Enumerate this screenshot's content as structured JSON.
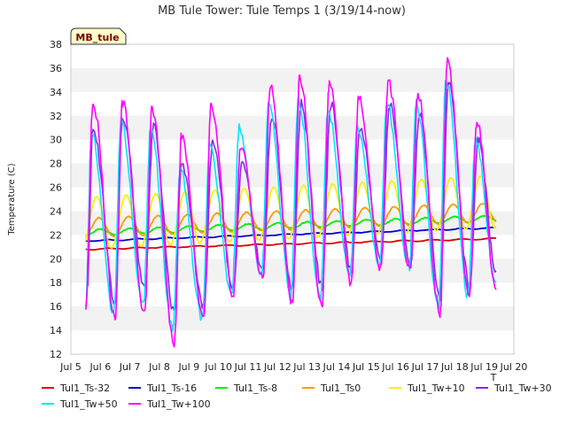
{
  "chart_data": {
    "type": "line",
    "title": "MB Tule Tower: Tule Temps 1 (3/19/14-now)",
    "site_label": "MB_tule",
    "ylabel": "Temperature (C)",
    "xlabel": "",
    "x_axis_note": "T",
    "xlim": [
      5,
      20
    ],
    "ylim": [
      12,
      38
    ],
    "x_ticks": [
      {
        "v": 5,
        "label": "Jul 5"
      },
      {
        "v": 6,
        "label": "Jul 6"
      },
      {
        "v": 7,
        "label": "Jul 7"
      },
      {
        "v": 8,
        "label": "Jul 8"
      },
      {
        "v": 9,
        "label": "Jul 9"
      },
      {
        "v": 10,
        "label": "Jul 10"
      },
      {
        "v": 11,
        "label": "Jul 11"
      },
      {
        "v": 12,
        "label": "Jul 12"
      },
      {
        "v": 13,
        "label": "Jul 13"
      },
      {
        "v": 14,
        "label": "Jul 14"
      },
      {
        "v": 15,
        "label": "Jul 15"
      },
      {
        "v": 16,
        "label": "Jul 16"
      },
      {
        "v": 17,
        "label": "Jul 17"
      },
      {
        "v": 18,
        "label": "Jul 18"
      },
      {
        "v": 19,
        "label": "Jul 19"
      },
      {
        "v": 20,
        "label": "Jul 20"
      }
    ],
    "y_ticks": [
      12,
      14,
      16,
      18,
      20,
      22,
      24,
      26,
      28,
      30,
      32,
      34,
      36,
      38
    ],
    "grid": "alternating horizontal bands",
    "legend_position": "bottom",
    "series": [
      {
        "name": "Tul1_Ts-32",
        "color": "#dd0000",
        "kind": "trend",
        "x": [
          5.5,
          19.4
        ],
        "y": [
          20.8,
          21.7
        ]
      },
      {
        "name": "Tul1_Ts-16",
        "color": "#0000cc",
        "kind": "trend",
        "x": [
          5.5,
          19.4
        ],
        "y": [
          21.5,
          22.6
        ]
      },
      {
        "name": "Tul1_Ts-8",
        "color": "#00ee00",
        "kind": "wave",
        "x_start": 5.5,
        "x_end": 19.4,
        "base_start": 22.2,
        "base_end": 23.4,
        "amplitude": 0.25,
        "phase": 0.75
      },
      {
        "name": "Tul1_Ts0",
        "color": "#ff9900",
        "kind": "wave",
        "x_start": 5.5,
        "x_end": 19.4,
        "base_start": 22.6,
        "base_end": 23.9,
        "amplitude": 0.8,
        "phase": 0.7
      },
      {
        "name": "Tul1_Tw+10",
        "color": "#ffee00",
        "kind": "wave",
        "x_start": 5.5,
        "x_end": 19.4,
        "base_start": 23.0,
        "base_end": 24.8,
        "amplitude": 2.2,
        "phase": 0.62
      },
      {
        "name": "Tul1_Tw+30",
        "color": "#8a2be2",
        "kind": "daily",
        "x": [
          5.5,
          19.4
        ],
        "peaks": [
          {
            "x": 5.75,
            "y": 31
          },
          {
            "x": 6.75,
            "y": 32
          },
          {
            "x": 7.8,
            "y": 31
          },
          {
            "x": 8.75,
            "y": 28
          },
          {
            "x": 9.8,
            "y": 30
          },
          {
            "x": 10.8,
            "y": 28
          },
          {
            "x": 11.8,
            "y": 32
          },
          {
            "x": 12.8,
            "y": 33
          },
          {
            "x": 13.8,
            "y": 33
          },
          {
            "x": 14.8,
            "y": 31
          },
          {
            "x": 15.8,
            "y": 33
          },
          {
            "x": 16.8,
            "y": 32
          },
          {
            "x": 17.8,
            "y": 35
          },
          {
            "x": 18.8,
            "y": 30
          }
        ],
        "troughs": [
          {
            "x": 5.55,
            "y": 17.5
          },
          {
            "x": 6.5,
            "y": 16.5
          },
          {
            "x": 7.5,
            "y": 17.5
          },
          {
            "x": 8.5,
            "y": 15.5
          },
          {
            "x": 9.5,
            "y": 16
          },
          {
            "x": 10.5,
            "y": 17.5
          },
          {
            "x": 11.5,
            "y": 19
          },
          {
            "x": 12.5,
            "y": 17.5
          },
          {
            "x": 13.5,
            "y": 17.5
          },
          {
            "x": 14.5,
            "y": 19
          },
          {
            "x": 15.5,
            "y": 20
          },
          {
            "x": 16.5,
            "y": 19.5
          },
          {
            "x": 17.5,
            "y": 17
          },
          {
            "x": 18.5,
            "y": 17.5
          },
          {
            "x": 19.4,
            "y": 19
          }
        ]
      },
      {
        "name": "Tul1_Tw+50",
        "color": "#00e5ff",
        "kind": "daily",
        "x": [
          5.5,
          19.4
        ],
        "peaks": [
          {
            "x": 5.7,
            "y": 30.5
          },
          {
            "x": 6.7,
            "y": 31.5
          },
          {
            "x": 7.7,
            "y": 31
          },
          {
            "x": 8.7,
            "y": 27.5
          },
          {
            "x": 9.7,
            "y": 29.5
          },
          {
            "x": 10.7,
            "y": 31
          },
          {
            "x": 11.7,
            "y": 33
          },
          {
            "x": 12.7,
            "y": 33.5
          },
          {
            "x": 13.7,
            "y": 32.5
          },
          {
            "x": 14.7,
            "y": 31
          },
          {
            "x": 15.7,
            "y": 33
          },
          {
            "x": 16.7,
            "y": 33
          },
          {
            "x": 17.7,
            "y": 35
          },
          {
            "x": 18.7,
            "y": 30
          }
        ],
        "troughs": [
          {
            "x": 5.5,
            "y": 16
          },
          {
            "x": 6.45,
            "y": 15.5
          },
          {
            "x": 7.45,
            "y": 16
          },
          {
            "x": 8.45,
            "y": 14
          },
          {
            "x": 9.45,
            "y": 15
          },
          {
            "x": 10.45,
            "y": 17
          },
          {
            "x": 11.45,
            "y": 18.5
          },
          {
            "x": 12.45,
            "y": 17
          },
          {
            "x": 13.45,
            "y": 16.5
          },
          {
            "x": 14.45,
            "y": 18.5
          },
          {
            "x": 15.45,
            "y": 19.5
          },
          {
            "x": 16.45,
            "y": 19
          },
          {
            "x": 17.45,
            "y": 16
          },
          {
            "x": 18.45,
            "y": 17
          },
          {
            "x": 19.4,
            "y": 18
          }
        ]
      },
      {
        "name": "Tul1_Tw+100",
        "color": "#ff00ff",
        "kind": "daily",
        "x": [
          5.5,
          19.4
        ],
        "peaks": [
          {
            "x": 5.75,
            "y": 33.2
          },
          {
            "x": 6.75,
            "y": 33
          },
          {
            "x": 7.75,
            "y": 32.6
          },
          {
            "x": 8.75,
            "y": 30.3
          },
          {
            "x": 9.75,
            "y": 32.8
          },
          {
            "x": 10.75,
            "y": 29.5
          },
          {
            "x": 11.75,
            "y": 34.5
          },
          {
            "x": 12.75,
            "y": 35.2
          },
          {
            "x": 13.75,
            "y": 34.7
          },
          {
            "x": 14.75,
            "y": 33.5
          },
          {
            "x": 15.75,
            "y": 34.8
          },
          {
            "x": 16.75,
            "y": 34
          },
          {
            "x": 17.75,
            "y": 36.5
          },
          {
            "x": 18.75,
            "y": 31.5
          }
        ],
        "troughs": [
          {
            "x": 5.5,
            "y": 15.4
          },
          {
            "x": 6.5,
            "y": 15.3
          },
          {
            "x": 7.5,
            "y": 15.5
          },
          {
            "x": 8.5,
            "y": 13
          },
          {
            "x": 9.5,
            "y": 14.8
          },
          {
            "x": 10.5,
            "y": 17
          },
          {
            "x": 11.5,
            "y": 18.4
          },
          {
            "x": 12.5,
            "y": 16.5
          },
          {
            "x": 13.5,
            "y": 16
          },
          {
            "x": 14.5,
            "y": 18
          },
          {
            "x": 15.5,
            "y": 19.2
          },
          {
            "x": 16.5,
            "y": 18.8
          },
          {
            "x": 17.5,
            "y": 15.5
          },
          {
            "x": 18.5,
            "y": 16.8
          },
          {
            "x": 19.4,
            "y": 17.4
          }
        ]
      }
    ]
  }
}
